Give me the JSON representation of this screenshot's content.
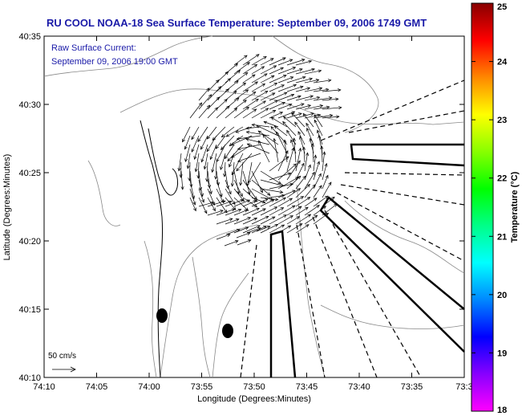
{
  "figure": {
    "title": "RU COOL  NOAA-18  Sea Surface Temperature:  September 09, 2006 1749 GMT",
    "annotation_line1": "Raw Surface Current:",
    "annotation_line2": "September 09, 2006 19:00 GMT",
    "scale_label": "50 cm/s"
  },
  "map": {
    "xlabel": "Longitude (Degrees:Minutes)",
    "ylabel": "Latitude (Degrees:Minutes)",
    "x_ticks": [
      "74:10",
      "74:05",
      "74:00",
      "73:55",
      "73:50",
      "73:45",
      "73:40",
      "73:35",
      "73:3"
    ],
    "y_ticks": [
      "40:35",
      "40:30",
      "40:25",
      "40:20",
      "40:15",
      "40:10"
    ]
  },
  "colorbar": {
    "label": "Temperature (°C)",
    "ticks": [
      "25",
      "24",
      "23",
      "22",
      "21",
      "20",
      "19",
      "18"
    ],
    "range": [
      18,
      25
    ],
    "colors": [
      "#ff00ff",
      "#8800ff",
      "#0000ff",
      "#0088ff",
      "#00ffff",
      "#00ff88",
      "#00ff00",
      "#88ff00",
      "#ffff00",
      "#ff8800",
      "#ff0000",
      "#880000"
    ]
  }
}
